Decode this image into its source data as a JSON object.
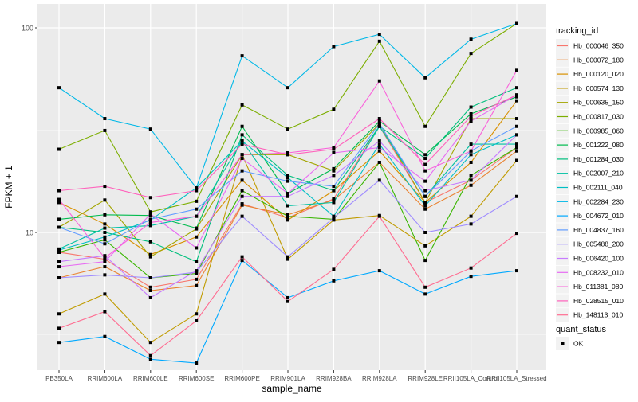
{
  "chart_data": {
    "type": "line",
    "title": "",
    "xlabel": "sample_name",
    "ylabel": "FPKM + 1",
    "yscale": "log10",
    "ylim": [
      2.4,
      125
    ],
    "y_ticks": [
      {
        "value": 10,
        "label": "10"
      },
      {
        "value": 100,
        "label": "100"
      }
    ],
    "grid": true,
    "legend_position": "right",
    "categories": [
      "PB350LA",
      "RRIM600LA",
      "RRIM600LE",
      "RRIM600SE",
      "RRIM600PE",
      "RRIM901LA",
      "RRIM928BA",
      "RRIM928LA",
      "RRIM928LE",
      "RRII105LA_Control",
      "RRII105LA_Stressed"
    ],
    "legend_title": "tracking_id",
    "shape_legend_title": "quant_status",
    "shape_legend_items": [
      "OK"
    ],
    "series": [
      {
        "name": "Hb_000046_350",
        "color": "#F8766D",
        "values": [
          8.0,
          7.4,
          5.4,
          5.9,
          13.8,
          11.8,
          14.6,
          33.0,
          14.0,
          18.0,
          26.0
        ]
      },
      {
        "name": "Hb_000072_180",
        "color": "#EA8331",
        "values": [
          6.0,
          6.8,
          5.2,
          5.5,
          13.6,
          12.2,
          14.4,
          22.0,
          13.0,
          17.0,
          25.0
        ]
      },
      {
        "name": "Hb_000120_020",
        "color": "#D89000",
        "values": [
          14.0,
          11.0,
          7.8,
          9.5,
          18.0,
          11.5,
          16.0,
          25.0,
          14.0,
          22.0,
          44.0
        ]
      },
      {
        "name": "Hb_000574_130",
        "color": "#C09B00",
        "values": [
          4.0,
          5.0,
          2.9,
          4.0,
          24.0,
          7.4,
          11.5,
          12.1,
          8.6,
          12.0,
          22.5
        ]
      },
      {
        "name": "Hb_000635_150",
        "color": "#A3A500",
        "values": [
          10.6,
          14.4,
          7.6,
          10.4,
          24.0,
          24.0,
          20.0,
          34.0,
          14.0,
          36.0,
          36.0
        ]
      },
      {
        "name": "Hb_000817_030",
        "color": "#7CAE00",
        "values": [
          25.5,
          31.5,
          12.6,
          14.2,
          42.0,
          32.0,
          40.0,
          86.0,
          33.0,
          75.0,
          105.0
        ]
      },
      {
        "name": "Hb_000985_060",
        "color": "#39B600",
        "values": [
          8.0,
          9.2,
          6.0,
          6.3,
          16.0,
          12.0,
          11.6,
          22.0,
          7.3,
          19.0,
          26.0
        ]
      },
      {
        "name": "Hb_001222_080",
        "color": "#00BB4E",
        "values": [
          11.6,
          12.2,
          12.1,
          10.5,
          33.0,
          15.5,
          20.5,
          35.0,
          24.0,
          38.0,
          46.0
        ]
      },
      {
        "name": "Hb_001284_030",
        "color": "#00BF7D",
        "values": [
          10.6,
          10.0,
          9.0,
          7.2,
          30.0,
          19.0,
          16.0,
          33.0,
          23.0,
          41.0,
          51.0
        ]
      },
      {
        "name": "Hb_002007_210",
        "color": "#00C1A3",
        "values": [
          8.3,
          10.5,
          10.8,
          12.0,
          28.0,
          13.5,
          14.0,
          33.0,
          15.0,
          27.0,
          27.0
        ]
      },
      {
        "name": "Hb_002111_040",
        "color": "#00BFC4",
        "values": [
          8.2,
          9.5,
          11.5,
          16.5,
          28.0,
          18.5,
          12.0,
          27.0,
          13.5,
          24.0,
          30.0
        ]
      },
      {
        "name": "Hb_002284_230",
        "color": "#00B8E7",
        "values": [
          51.0,
          36.0,
          32.0,
          16.5,
          73.0,
          51.0,
          81.0,
          93.0,
          57.0,
          88.0,
          105.0
        ]
      },
      {
        "name": "Hb_004672_010",
        "color": "#00A9FF",
        "values": [
          2.9,
          3.1,
          2.4,
          2.3,
          7.3,
          4.8,
          5.8,
          6.5,
          5.0,
          6.1,
          6.5
        ]
      },
      {
        "name": "Hb_004837_160",
        "color": "#619CFF",
        "values": [
          10.6,
          8.8,
          11.6,
          13.0,
          20.0,
          17.8,
          16.8,
          34.0,
          15.0,
          25.0,
          33.0
        ]
      },
      {
        "name": "Hb_005488_200",
        "color": "#9F8CFF",
        "values": [
          6.0,
          6.2,
          6.0,
          6.4,
          12.0,
          7.6,
          11.8,
          18.0,
          10.0,
          11.0,
          15.0
        ]
      },
      {
        "name": "Hb_006420_100",
        "color": "#C77CFF",
        "values": [
          7.2,
          7.7,
          4.8,
          6.5,
          15.0,
          15.0,
          19.0,
          28.0,
          16.0,
          18.0,
          30.0
        ]
      },
      {
        "name": "Hb_008232_010",
        "color": "#E76BF3",
        "values": [
          6.8,
          7.2,
          12.3,
          8.4,
          23.0,
          15.5,
          24.5,
          26.0,
          17.8,
          35.0,
          47.0
        ]
      },
      {
        "name": "Hb_011381_080",
        "color": "#FA62DB",
        "values": [
          14.5,
          7.5,
          11.2,
          12.0,
          24.0,
          24.5,
          26.0,
          55.0,
          20.0,
          25.0,
          62.0
        ]
      },
      {
        "name": "Hb_028515_010",
        "color": "#FF62BC",
        "values": [
          16.0,
          16.8,
          14.8,
          16.0,
          27.0,
          24.0,
          25.5,
          36.0,
          21.5,
          37.0,
          47.0
        ]
      },
      {
        "name": "Hb_148113_010",
        "color": "#FF6C91",
        "values": [
          3.4,
          4.1,
          2.5,
          3.7,
          7.6,
          4.6,
          6.6,
          12.0,
          5.4,
          6.7,
          9.9
        ]
      }
    ]
  }
}
